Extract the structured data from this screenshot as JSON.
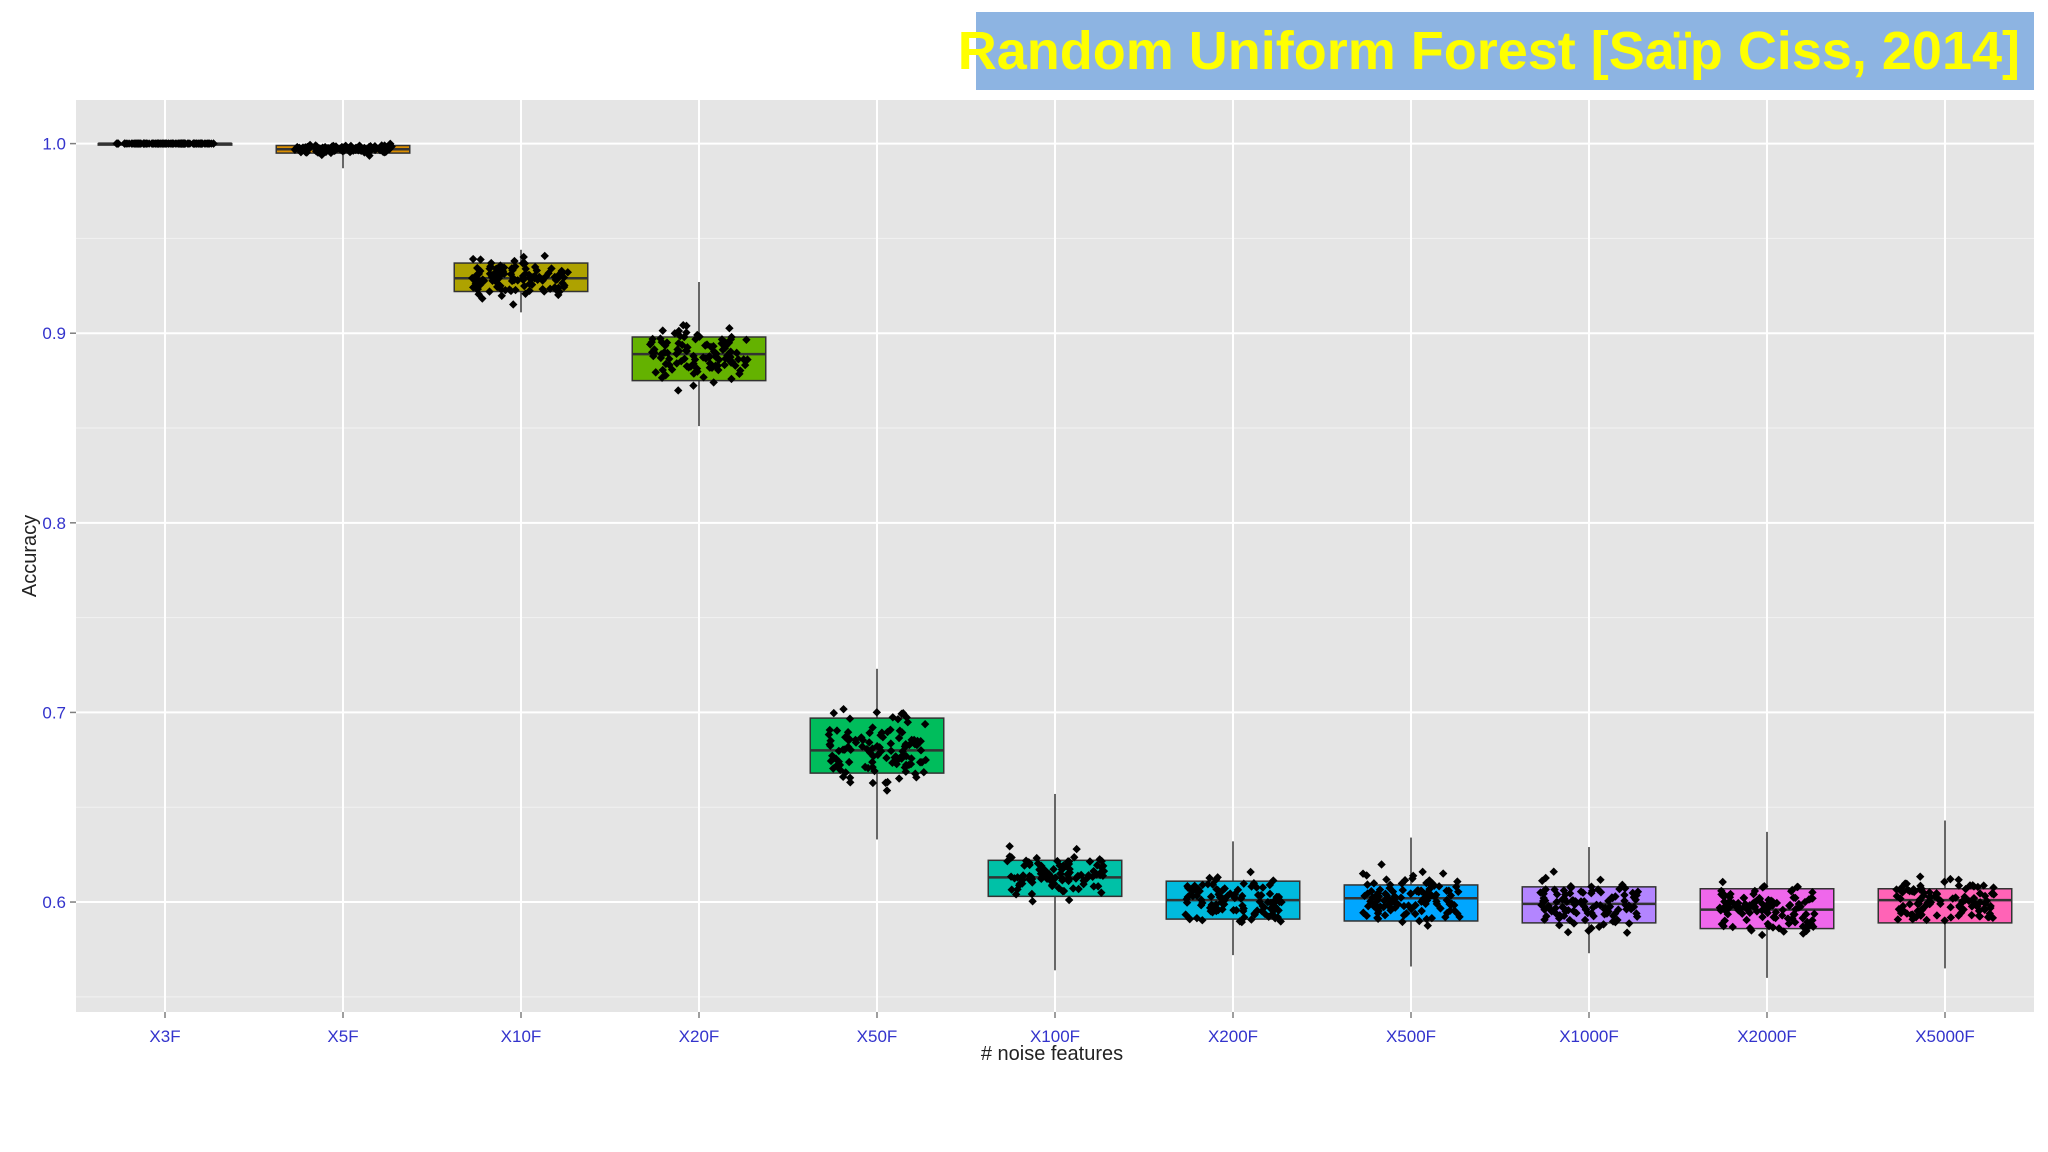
{
  "banner": {
    "title": "Random Uniform Forest [Saïp Ciss, 2014]"
  },
  "chart_data": {
    "type": "box",
    "title": "",
    "xlabel": "# noise features",
    "ylabel": "Accuracy",
    "ylim": [
      0.542,
      1.023
    ],
    "yticks": [
      "0.6",
      "0.7",
      "0.8",
      "0.9",
      "1.0"
    ],
    "grid": true,
    "legend": "none",
    "categories": [
      "X3F",
      "X5F",
      "X10F",
      "X20F",
      "X50F",
      "X100F",
      "X200F",
      "X500F",
      "X1000F",
      "X2000F",
      "X5000F"
    ],
    "boxes": [
      {
        "category": "X3F",
        "min": 1.0,
        "q1": 1.0,
        "median": 1.0,
        "q3": 1.0,
        "max": 1.0,
        "color": "#f8766d"
      },
      {
        "category": "X5F",
        "min": 0.987,
        "q1": 0.995,
        "median": 0.997,
        "q3": 0.999,
        "max": 1.0,
        "color": "#db8e00"
      },
      {
        "category": "X10F",
        "min": 0.911,
        "q1": 0.922,
        "median": 0.929,
        "q3": 0.937,
        "max": 0.944,
        "color": "#aea200"
      },
      {
        "category": "X20F",
        "min": 0.851,
        "q1": 0.875,
        "median": 0.889,
        "q3": 0.898,
        "max": 0.927,
        "color": "#64b200"
      },
      {
        "category": "X50F",
        "min": 0.633,
        "q1": 0.668,
        "median": 0.68,
        "q3": 0.697,
        "max": 0.723,
        "color": "#00bd5c"
      },
      {
        "category": "X100F",
        "min": 0.564,
        "q1": 0.603,
        "median": 0.613,
        "q3": 0.622,
        "max": 0.657,
        "color": "#00c1a7"
      },
      {
        "category": "X200F",
        "min": 0.572,
        "q1": 0.591,
        "median": 0.601,
        "q3": 0.611,
        "max": 0.632,
        "color": "#00bade"
      },
      {
        "category": "X500F",
        "min": 0.566,
        "q1": 0.59,
        "median": 0.602,
        "q3": 0.609,
        "max": 0.634,
        "color": "#00a6ff"
      },
      {
        "category": "X1000F",
        "min": 0.573,
        "q1": 0.589,
        "median": 0.599,
        "q3": 0.608,
        "max": 0.629,
        "color": "#b385ff"
      },
      {
        "category": "X2000F",
        "min": 0.56,
        "q1": 0.586,
        "median": 0.596,
        "q3": 0.607,
        "max": 0.637,
        "color": "#ef67eb"
      },
      {
        "category": "X5000F",
        "min": 0.565,
        "q1": 0.589,
        "median": 0.601,
        "q3": 0.607,
        "max": 0.643,
        "color": "#ff63b6"
      }
    ]
  }
}
